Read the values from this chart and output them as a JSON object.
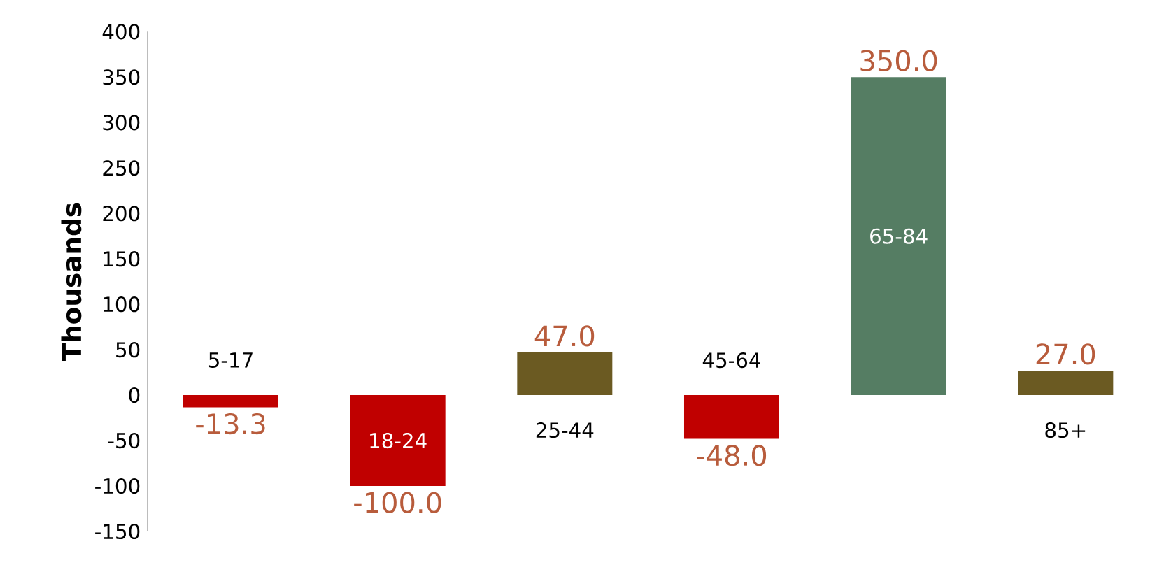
{
  "chart_data": {
    "type": "bar",
    "ylabel": "Thousands",
    "categories": [
      "5-17",
      "18-24",
      "25-44",
      "45-64",
      "65-84",
      "85+"
    ],
    "values": [
      -13.3,
      -100.0,
      47.0,
      -48.0,
      350.0,
      27.0
    ],
    "colors": [
      "#c00000",
      "#c00000",
      "#6b5a22",
      "#c00000",
      "#557d63",
      "#6b5a22"
    ],
    "value_labels": [
      "-13.3",
      "-100.0",
      "47.0",
      "-48.0",
      "350.0",
      "27.0"
    ],
    "ylim": [
      -150,
      400
    ],
    "yticks": [
      -150,
      -100,
      -50,
      0,
      50,
      100,
      150,
      200,
      250,
      300,
      350,
      400
    ]
  }
}
